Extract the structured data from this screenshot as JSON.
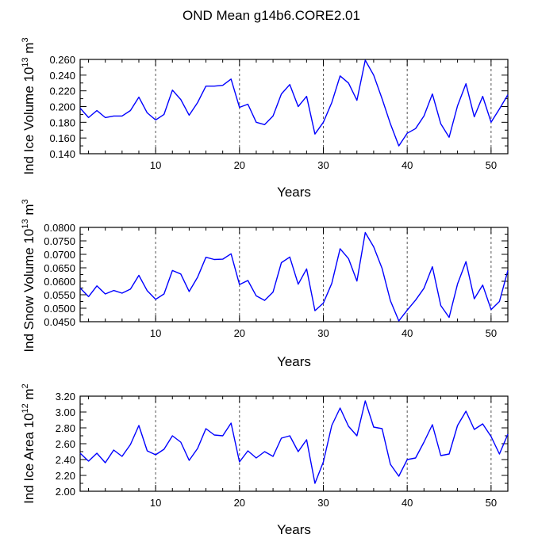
{
  "figure_title": "OND Mean g14b6.CORE2.01",
  "chart_data": [
    {
      "type": "line",
      "title": "",
      "xlabel": "Years",
      "ylabel": {
        "prefix": "Ind Ice Volume 10",
        "exponent": "13",
        "unit": " m",
        "unit_exponent": "3"
      },
      "xlim": [
        1,
        52
      ],
      "ylim": [
        0.14,
        0.26
      ],
      "yticks": [
        "0.140",
        "0.160",
        "0.180",
        "0.200",
        "0.220",
        "0.240",
        "0.260"
      ],
      "xticks": [
        "10",
        "20",
        "30",
        "40",
        "50"
      ],
      "grid": "dashed vertical lines at x = 10, 20, 30, 40, 50",
      "line_color": "#0000ff",
      "x": [
        1,
        2,
        3,
        4,
        5,
        6,
        7,
        8,
        9,
        10,
        11,
        12,
        13,
        14,
        15,
        16,
        17,
        18,
        19,
        20,
        21,
        22,
        23,
        24,
        25,
        26,
        27,
        28,
        29,
        30,
        31,
        32,
        33,
        34,
        35,
        36,
        37,
        38,
        39,
        40,
        41,
        42,
        43,
        44,
        45,
        46,
        47,
        48,
        49,
        50,
        51,
        52
      ],
      "values": [
        0.198,
        0.186,
        0.195,
        0.186,
        0.188,
        0.188,
        0.195,
        0.212,
        0.192,
        0.183,
        0.19,
        0.221,
        0.209,
        0.189,
        0.205,
        0.226,
        0.226,
        0.227,
        0.235,
        0.199,
        0.203,
        0.18,
        0.177,
        0.188,
        0.216,
        0.228,
        0.2,
        0.213,
        0.165,
        0.18,
        0.205,
        0.239,
        0.23,
        0.208,
        0.259,
        0.24,
        0.21,
        0.178,
        0.15,
        0.166,
        0.172,
        0.188,
        0.216,
        0.178,
        0.161,
        0.201,
        0.229,
        0.187,
        0.213,
        0.18,
        0.197,
        0.215
      ]
    },
    {
      "type": "line",
      "title": "",
      "xlabel": "Years",
      "ylabel": {
        "prefix": "Ind Snow Volume 10",
        "exponent": "13",
        "unit": " m",
        "unit_exponent": "3"
      },
      "xlim": [
        1,
        52
      ],
      "ylim": [
        0.045,
        0.08
      ],
      "yticks": [
        "0.0450",
        "0.0500",
        "0.0550",
        "0.0600",
        "0.0650",
        "0.0700",
        "0.0750",
        "0.0800"
      ],
      "xticks": [
        "10",
        "20",
        "30",
        "40",
        "50"
      ],
      "grid": "dashed vertical lines at x = 10, 20, 30, 40, 50",
      "line_color": "#0000ff",
      "x": [
        1,
        2,
        3,
        4,
        5,
        6,
        7,
        8,
        9,
        10,
        11,
        12,
        13,
        14,
        15,
        16,
        17,
        18,
        19,
        20,
        21,
        22,
        23,
        24,
        25,
        26,
        27,
        28,
        29,
        30,
        31,
        32,
        33,
        34,
        35,
        36,
        37,
        38,
        39,
        40,
        41,
        42,
        43,
        44,
        45,
        46,
        47,
        48,
        49,
        50,
        51,
        52
      ],
      "values": [
        0.0575,
        0.0543,
        0.0583,
        0.0553,
        0.0566,
        0.0556,
        0.0571,
        0.0622,
        0.0565,
        0.0533,
        0.0553,
        0.064,
        0.0627,
        0.0562,
        0.0615,
        0.0689,
        0.0681,
        0.0682,
        0.0702,
        0.0588,
        0.0603,
        0.0546,
        0.0529,
        0.056,
        0.0669,
        0.069,
        0.0589,
        0.0646,
        0.0491,
        0.0519,
        0.0592,
        0.0721,
        0.0684,
        0.0601,
        0.0781,
        0.0728,
        0.0648,
        0.0528,
        0.0453,
        0.0493,
        0.053,
        0.0574,
        0.0654,
        0.051,
        0.0466,
        0.059,
        0.0673,
        0.0535,
        0.0586,
        0.0495,
        0.0525,
        0.064
      ]
    },
    {
      "type": "line",
      "title": "",
      "xlabel": "Years",
      "ylabel": {
        "prefix": "Ind Ice Area 10",
        "exponent": "12",
        "unit": " m",
        "unit_exponent": "2"
      },
      "xlim": [
        1,
        52
      ],
      "ylim": [
        2.0,
        3.2
      ],
      "yticks": [
        "2.00",
        "2.20",
        "2.40",
        "2.60",
        "2.80",
        "3.00",
        "3.20"
      ],
      "xticks": [
        "10",
        "20",
        "30",
        "40",
        "50"
      ],
      "grid": "dashed vertical lines at x = 10, 20, 30, 40, 50",
      "line_color": "#0000ff",
      "x": [
        1,
        2,
        3,
        4,
        5,
        6,
        7,
        8,
        9,
        10,
        11,
        12,
        13,
        14,
        15,
        16,
        17,
        18,
        19,
        20,
        21,
        22,
        23,
        24,
        25,
        26,
        27,
        28,
        29,
        30,
        31,
        32,
        33,
        34,
        35,
        36,
        37,
        38,
        39,
        40,
        41,
        42,
        43,
        44,
        45,
        46,
        47,
        48,
        49,
        50,
        51,
        52
      ],
      "values": [
        2.48,
        2.38,
        2.48,
        2.36,
        2.52,
        2.44,
        2.59,
        2.83,
        2.51,
        2.46,
        2.53,
        2.7,
        2.62,
        2.39,
        2.54,
        2.79,
        2.71,
        2.7,
        2.86,
        2.37,
        2.51,
        2.42,
        2.5,
        2.44,
        2.67,
        2.7,
        2.5,
        2.65,
        2.1,
        2.37,
        2.83,
        3.05,
        2.82,
        2.7,
        3.14,
        2.81,
        2.79,
        2.34,
        2.19,
        2.4,
        2.42,
        2.62,
        2.84,
        2.45,
        2.47,
        2.83,
        3.01,
        2.78,
        2.85,
        2.69,
        2.47,
        2.72
      ]
    }
  ]
}
